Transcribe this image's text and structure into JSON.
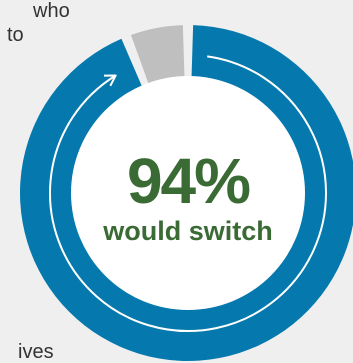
{
  "text_fragments": {
    "top_line1": "who",
    "top_line2": "to",
    "bottom_line": "ives"
  },
  "colors": {
    "accent": "#0579ad",
    "remainder": "#bfbfbf",
    "text_green": "#3a6b34",
    "background": "#efefef"
  },
  "chart_data": {
    "type": "pie",
    "title": "",
    "slices": [
      {
        "label": "would switch",
        "value": 94
      },
      {
        "label": "",
        "value": 6
      }
    ],
    "center_value": "94%",
    "center_label": "would switch"
  }
}
